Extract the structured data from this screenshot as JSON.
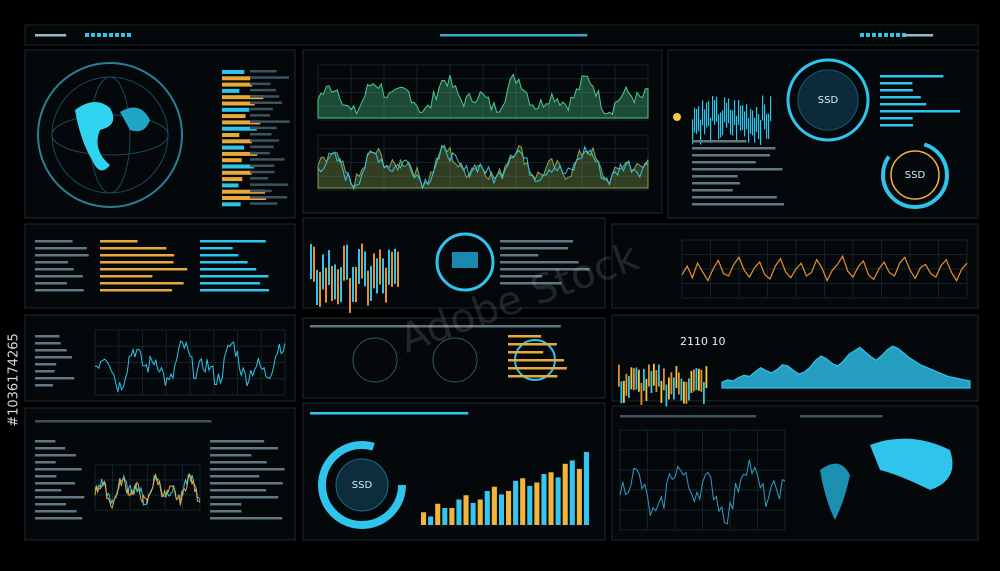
{
  "header": {
    "id": "#1036174265",
    "watermark": "Adobe Stock"
  },
  "panels": {
    "readout": "2110 10",
    "dial_top": "SSD",
    "dial_right": "SSD",
    "donut": "SSD"
  },
  "chart_data": [
    {
      "type": "bar",
      "categories": [
        null,
        null,
        null,
        null,
        null,
        null,
        null,
        null,
        null,
        null,
        null,
        null
      ],
      "series": [
        {
          "color": "#f2b53a",
          "values": [
            15,
            25,
            20,
            35,
            30,
            45,
            40,
            55,
            50,
            62,
            72,
            66
          ]
        },
        {
          "color": "#33c6f0",
          "values": [
            10,
            20,
            30,
            26,
            40,
            36,
            52,
            46,
            60,
            56,
            76,
            86
          ]
        }
      ],
      "ylim": [
        0,
        100
      ]
    },
    {
      "type": "line",
      "color": "#e8902a",
      "values": [
        40,
        55,
        35,
        60,
        45,
        30,
        50,
        65,
        42,
        38,
        58,
        70,
        48,
        36,
        52,
        62,
        40,
        33,
        55,
        68,
        45,
        35,
        50,
        60,
        38,
        44,
        66,
        52,
        30,
        48,
        58,
        72,
        46,
        36,
        54,
        64,
        40,
        32,
        50,
        62,
        44,
        38,
        60,
        70,
        48,
        34,
        52,
        58,
        42,
        36,
        56,
        66,
        44,
        30,
        50,
        60
      ],
      "ylim": [
        0,
        100
      ]
    },
    {
      "type": "area",
      "color": "#2fc4ec",
      "values": [
        10,
        14,
        12,
        18,
        22,
        20,
        28,
        35,
        30,
        26,
        32,
        40,
        38,
        30,
        24,
        28,
        36,
        48,
        55,
        50,
        42,
        38,
        46,
        58,
        64,
        70,
        62,
        54,
        48,
        56,
        66,
        72,
        68,
        60,
        52,
        46,
        40,
        36,
        32,
        28,
        24,
        20,
        18,
        16,
        14,
        12
      ],
      "ylim": [
        0,
        100
      ]
    }
  ]
}
